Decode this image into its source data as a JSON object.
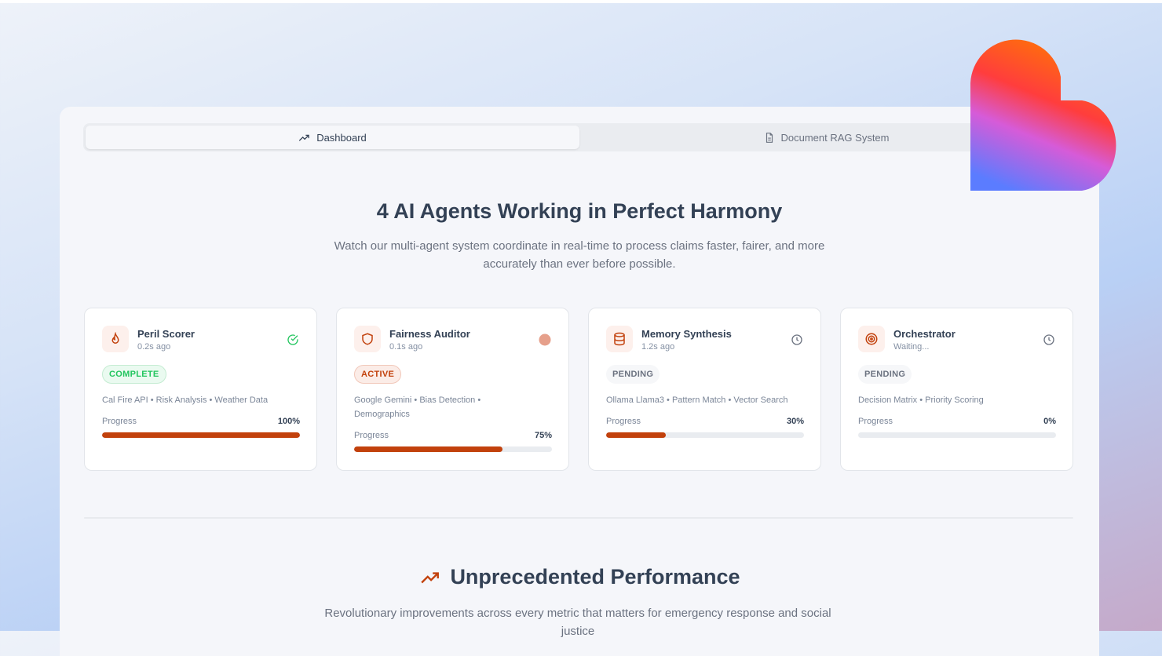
{
  "tabs": [
    {
      "label": "Dashboard",
      "icon": "trending-up-icon",
      "active": true
    },
    {
      "label": "Document RAG System",
      "icon": "file-text-icon",
      "active": false
    }
  ],
  "hero": {
    "title": "4 AI Agents Working in Perfect Harmony",
    "subtitle": "Watch our multi-agent system coordinate in real-time to process claims faster, fairer, and more accurately than ever before possible."
  },
  "agents": [
    {
      "name": "Peril Scorer",
      "time": "0.2s ago",
      "status": "COMPLETE",
      "status_icon": "check-circle-icon",
      "icon": "flame-icon",
      "tags": "Cal Fire API • Risk Analysis • Weather Data",
      "progress_label": "Progress",
      "progress": "100%",
      "progress_value": 100
    },
    {
      "name": "Fairness Auditor",
      "time": "0.1s ago",
      "status": "ACTIVE",
      "status_icon": "pulse-dot-icon",
      "icon": "shield-icon",
      "tags": "Google Gemini • Bias Detection • Demographics",
      "progress_label": "Progress",
      "progress": "75%",
      "progress_value": 75
    },
    {
      "name": "Memory Synthesis",
      "time": "1.2s ago",
      "status": "PENDING",
      "status_icon": "clock-icon",
      "icon": "database-icon",
      "tags": "Ollama Llama3 • Pattern Match • Vector Search",
      "progress_label": "Progress",
      "progress": "30%",
      "progress_value": 30
    },
    {
      "name": "Orchestrator",
      "time": "Waiting...",
      "status": "PENDING",
      "status_icon": "clock-icon",
      "icon": "target-icon",
      "tags": "Decision Matrix • Priority Scoring",
      "progress_label": "Progress",
      "progress": "0%",
      "progress_value": 0
    }
  ],
  "performance": {
    "title": "Unprecedented Performance",
    "subtitle": "Revolutionary improvements across every metric that matters for emergency response and social justice"
  },
  "colors": {
    "accent": "#c2410c",
    "complete": "#22c55e",
    "text": "#334155"
  }
}
